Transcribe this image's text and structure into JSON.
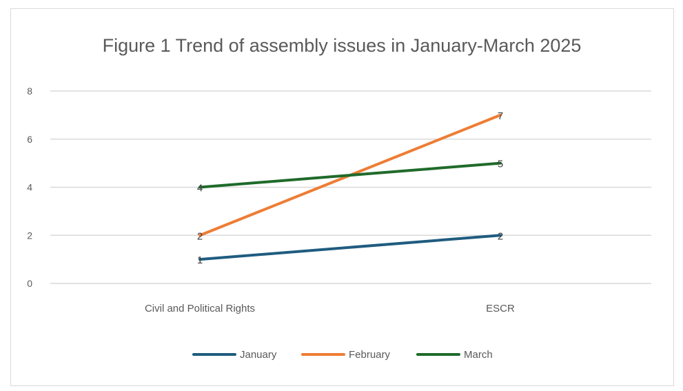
{
  "chart_data": {
    "type": "line",
    "title": "Figure 1 Trend of assembly  issues in January-March  2025",
    "categories": [
      "Civil and Political Rights",
      "ESCR"
    ],
    "series": [
      {
        "name": "January",
        "values": [
          1,
          2
        ],
        "color": "#1f5c7f"
      },
      {
        "name": "February",
        "values": [
          2,
          7
        ],
        "color": "#ee7d35"
      },
      {
        "name": "March",
        "values": [
          4,
          5
        ],
        "color": "#1f6b2a"
      }
    ],
    "ylim": [
      0,
      8
    ],
    "yticks": [
      0,
      2,
      4,
      6,
      8
    ],
    "grid": true,
    "legend": "bottom",
    "data_labels": true
  }
}
